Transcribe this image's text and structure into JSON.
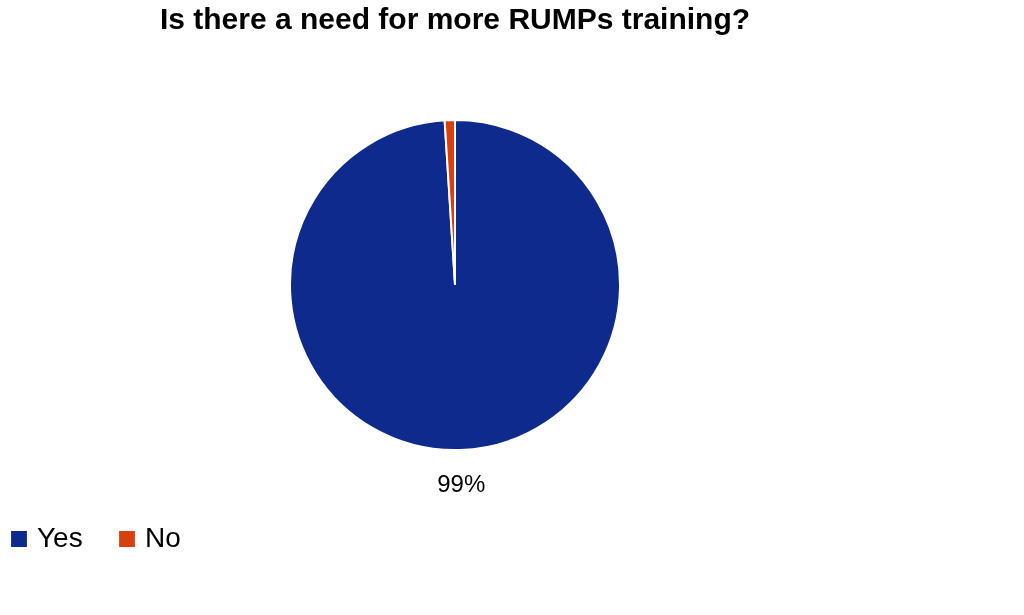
{
  "chart_data": {
    "type": "pie",
    "title": "Is there a need for more RUMPs training?",
    "categories": [
      "Yes",
      "No"
    ],
    "values": [
      99,
      1
    ],
    "colors": [
      "#0d2a8c",
      "#d9400f"
    ],
    "value_labels": [
      "99%",
      null
    ],
    "legend": "bottom"
  }
}
